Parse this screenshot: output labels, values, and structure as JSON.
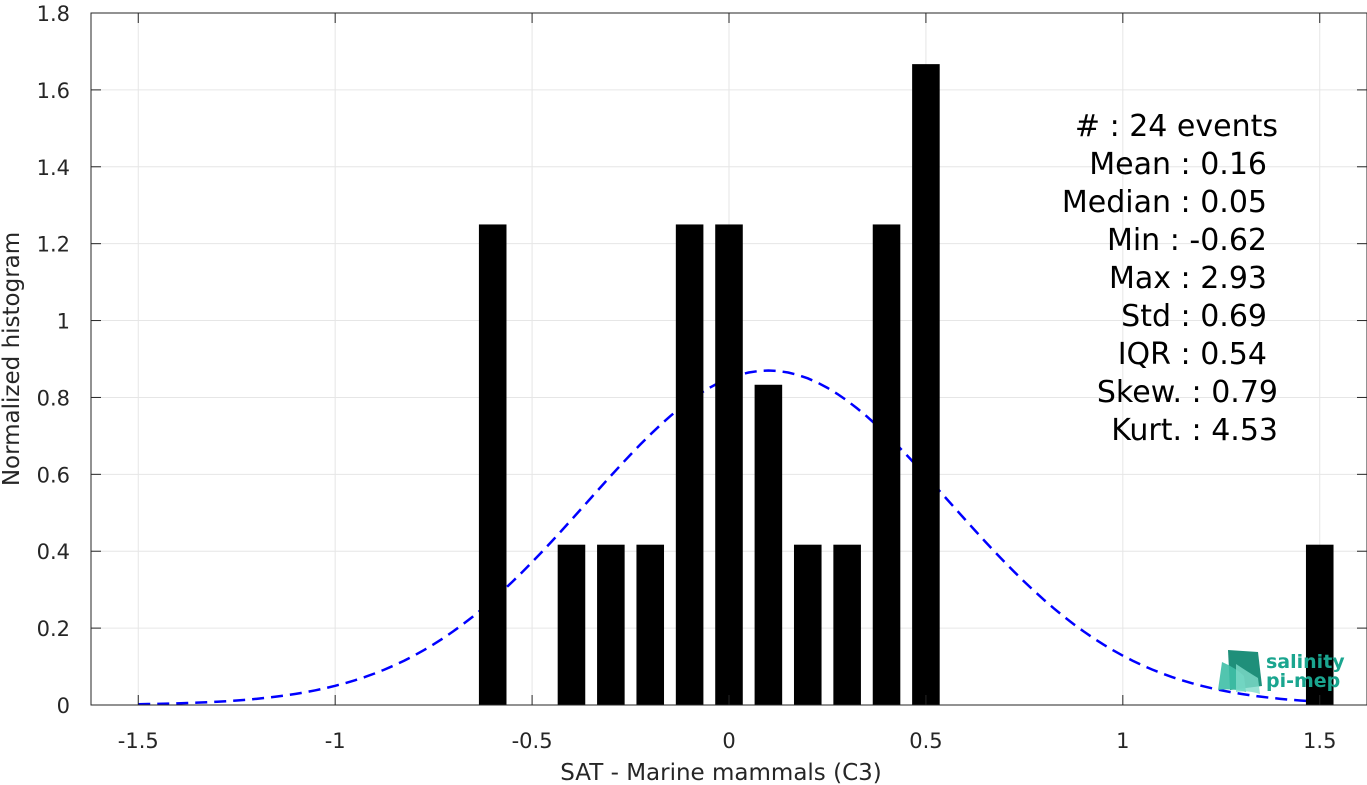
{
  "chart_data": {
    "type": "bar",
    "xlabel": "SAT - Marine mammals (C3)",
    "ylabel": "Normalized histogram",
    "xlim": [
      -1.62,
      1.62
    ],
    "ylim": [
      0,
      1.8
    ],
    "x_ticks": [
      -1.5,
      -1,
      -0.5,
      0,
      0.5,
      1,
      1.5
    ],
    "x_tick_labels": [
      "-1.5",
      "-1",
      "-0.5",
      "0",
      "0.5",
      "1",
      "1.5"
    ],
    "y_ticks": [
      0,
      0.2,
      0.4,
      0.6,
      0.8,
      1,
      1.2,
      1.4,
      1.6,
      1.8
    ],
    "y_tick_labels": [
      "0",
      "0.2",
      "0.4",
      "0.6",
      "0.8",
      "1",
      "1.2",
      "1.4",
      "1.6",
      "1.8"
    ],
    "grid": true,
    "bar_color": "#000000",
    "bar_width": 0.07,
    "bars": [
      {
        "x": -0.6,
        "y": 1.25
      },
      {
        "x": -0.4,
        "y": 0.417
      },
      {
        "x": -0.3,
        "y": 0.417
      },
      {
        "x": -0.2,
        "y": 0.417
      },
      {
        "x": -0.1,
        "y": 1.25
      },
      {
        "x": 0.0,
        "y": 1.25
      },
      {
        "x": 0.1,
        "y": 0.833
      },
      {
        "x": 0.2,
        "y": 0.417
      },
      {
        "x": 0.3,
        "y": 0.417
      },
      {
        "x": 0.4,
        "y": 1.25
      },
      {
        "x": 0.5,
        "y": 1.667
      },
      {
        "x": 1.5,
        "y": 0.417
      }
    ],
    "fit_curve": {
      "style": "dashed",
      "color": "#0000ff",
      "mean": 0.1,
      "std": 0.46,
      "peak": 0.87,
      "x_range": [
        -1.5,
        1.5
      ]
    },
    "stats": [
      {
        "label": "#  : 24 events"
      },
      {
        "label": "Mean : 0.16"
      },
      {
        "label": "Median : 0.05"
      },
      {
        "label": "Min : -0.62"
      },
      {
        "label": "Max : 2.93"
      },
      {
        "label": "Std : 0.69"
      },
      {
        "label": "IQR : 0.54"
      },
      {
        "label": "Skew. : 0.79"
      },
      {
        "label": "Kurt. : 4.53"
      }
    ]
  },
  "logo": {
    "line1": "salinity",
    "line2": "pi-mep",
    "color": "#1aa58f"
  }
}
